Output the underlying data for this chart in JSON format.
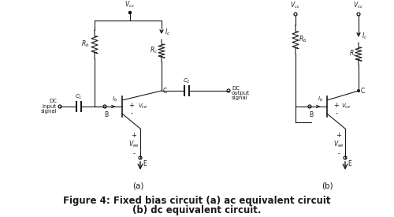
{
  "title_line1": "Figure 4: Fixed bias circuit (a) ac equivalent circuit",
  "title_line2": "(b) dc equivalent circuit.",
  "label_a": "(a)",
  "label_b": "(b)",
  "bg_color": "#ffffff",
  "line_color": "#1a1a1a",
  "font_size_title": 8.5,
  "font_size_label": 7.5,
  "font_size_small": 5.5,
  "font_size_node": 5.5
}
